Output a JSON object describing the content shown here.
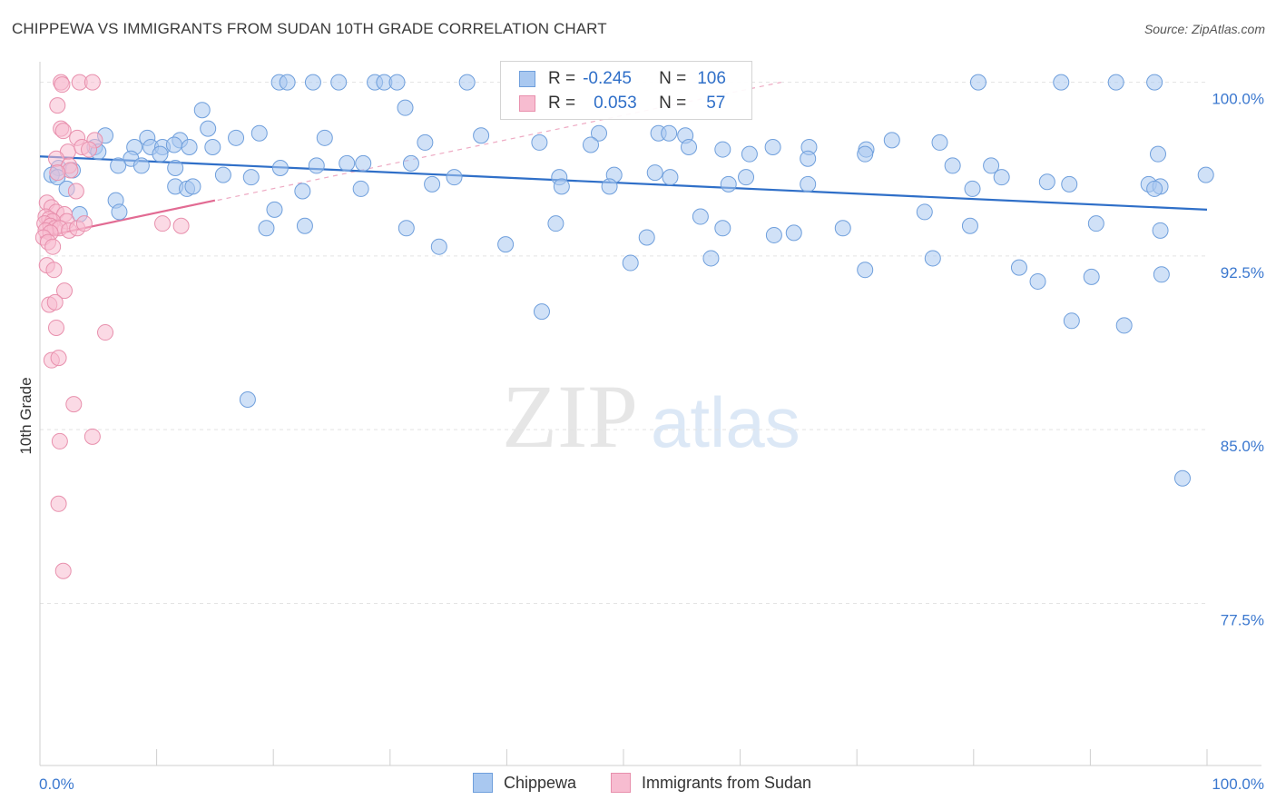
{
  "title": "CHIPPEWA VS IMMIGRANTS FROM SUDAN 10TH GRADE CORRELATION CHART",
  "source": "Source: ZipAtlas.com",
  "watermark": {
    "zip": "ZIP",
    "atlas": "atlas"
  },
  "legend": {
    "rows": [
      {
        "r_label": "R =",
        "r_value": "-0.245",
        "n_label": "N =",
        "n_value": "106",
        "color": "#a9c8f0",
        "border": "#6f9fdc"
      },
      {
        "r_label": "R =",
        "r_value": "0.053",
        "n_label": "N =",
        "n_value": "57",
        "color": "#f7bcd0",
        "border": "#e890ad"
      }
    ]
  },
  "bottom_legend": [
    {
      "label": "Chippewa",
      "color": "#a9c8f0",
      "border": "#6f9fdc"
    },
    {
      "label": "Immigrants from Sudan",
      "color": "#f7bcd0",
      "border": "#e890ad"
    }
  ],
  "chart_data": {
    "type": "scatter",
    "ylabel": "10th Grade",
    "x_tick_labels": [
      "0.0%",
      "100.0%"
    ],
    "y_tick_labels": [
      "100.0%",
      "92.5%",
      "85.0%",
      "77.5%"
    ],
    "y_ticks": [
      100.0,
      92.5,
      85.0,
      77.5
    ],
    "xlim": [
      0,
      100
    ],
    "ylim": [
      70.5,
      101.2
    ],
    "grid": "horizontal-dashed",
    "colors": {
      "blue": "#6f9fdc",
      "blue_fill": "#a9c8f0",
      "blue_line": "#2f6fc8",
      "pink": "#e890ad",
      "pink_fill": "#f7bcd0",
      "pink_line": "#e26b93",
      "axis_text": "#3b78cf"
    },
    "series": [
      {
        "name": "Chippewa",
        "color": "#6f9fdc",
        "trend": {
          "x": [
            0,
            100
          ],
          "y": [
            96.8,
            94.5
          ]
        },
        "points": [
          [
            20.5,
            100
          ],
          [
            21.2,
            100
          ],
          [
            23.4,
            100
          ],
          [
            25.6,
            100
          ],
          [
            28.7,
            100
          ],
          [
            29.5,
            100
          ],
          [
            30.6,
            100
          ],
          [
            36.6,
            100
          ],
          [
            80.4,
            100
          ],
          [
            87.5,
            100
          ],
          [
            92.2,
            100
          ],
          [
            95.5,
            100
          ],
          [
            13.9,
            98.8
          ],
          [
            31.3,
            98.9
          ],
          [
            14.4,
            98.0
          ],
          [
            5.6,
            97.7
          ],
          [
            9.2,
            97.6
          ],
          [
            12.0,
            97.5
          ],
          [
            16.8,
            97.6
          ],
          [
            18.8,
            97.8
          ],
          [
            24.4,
            97.6
          ],
          [
            33.0,
            97.4
          ],
          [
            37.8,
            97.7
          ],
          [
            42.8,
            97.4
          ],
          [
            47.9,
            97.8
          ],
          [
            53.0,
            97.8
          ],
          [
            53.9,
            97.8
          ],
          [
            55.3,
            97.7
          ],
          [
            73.0,
            97.5
          ],
          [
            77.1,
            97.4
          ],
          [
            4.7,
            97.2
          ],
          [
            5.0,
            97.0
          ],
          [
            8.1,
            97.2
          ],
          [
            9.5,
            97.2
          ],
          [
            10.5,
            97.2
          ],
          [
            11.5,
            97.3
          ],
          [
            12.8,
            97.2
          ],
          [
            14.8,
            97.2
          ],
          [
            47.2,
            97.3
          ],
          [
            55.6,
            97.2
          ],
          [
            62.8,
            97.2
          ],
          [
            65.9,
            97.2
          ],
          [
            70.8,
            97.1
          ],
          [
            1.6,
            96.3
          ],
          [
            7.8,
            96.7
          ],
          [
            8.7,
            96.4
          ],
          [
            10.3,
            96.9
          ],
          [
            20.6,
            96.3
          ],
          [
            23.7,
            96.4
          ],
          [
            26.3,
            96.5
          ],
          [
            27.7,
            96.5
          ],
          [
            31.8,
            96.5
          ],
          [
            58.5,
            97.1
          ],
          [
            60.8,
            96.9
          ],
          [
            65.8,
            96.7
          ],
          [
            70.7,
            96.9
          ],
          [
            78.2,
            96.4
          ],
          [
            81.5,
            96.4
          ],
          [
            95.8,
            96.9
          ],
          [
            1.0,
            96.0
          ],
          [
            1.5,
            95.9
          ],
          [
            2.8,
            96.2
          ],
          [
            6.7,
            96.4
          ],
          [
            11.6,
            96.3
          ],
          [
            15.7,
            96.0
          ],
          [
            18.1,
            95.9
          ],
          [
            35.5,
            95.9
          ],
          [
            44.5,
            95.9
          ],
          [
            49.2,
            96.0
          ],
          [
            52.7,
            96.1
          ],
          [
            54.0,
            95.9
          ],
          [
            60.5,
            95.9
          ],
          [
            82.4,
            95.9
          ],
          [
            86.3,
            95.7
          ],
          [
            88.2,
            95.6
          ],
          [
            95.0,
            95.6
          ],
          [
            96.0,
            95.5
          ],
          [
            99.9,
            96.0
          ],
          [
            2.3,
            95.4
          ],
          [
            6.5,
            94.9
          ],
          [
            11.6,
            95.5
          ],
          [
            12.6,
            95.4
          ],
          [
            22.5,
            95.3
          ],
          [
            27.5,
            95.4
          ],
          [
            33.6,
            95.6
          ],
          [
            44.7,
            95.5
          ],
          [
            48.8,
            95.5
          ],
          [
            59.0,
            95.6
          ],
          [
            65.8,
            95.6
          ],
          [
            79.9,
            95.4
          ],
          [
            95.5,
            95.4
          ],
          [
            3.4,
            94.3
          ],
          [
            6.8,
            94.4
          ],
          [
            13.1,
            95.5
          ],
          [
            19.4,
            93.7
          ],
          [
            20.1,
            94.5
          ],
          [
            22.7,
            93.8
          ],
          [
            31.4,
            93.7
          ],
          [
            44.2,
            93.9
          ],
          [
            56.6,
            94.2
          ],
          [
            58.5,
            93.7
          ],
          [
            62.9,
            93.4
          ],
          [
            68.8,
            93.7
          ],
          [
            75.8,
            94.4
          ],
          [
            79.7,
            93.8
          ],
          [
            90.5,
            93.9
          ],
          [
            96.0,
            93.6
          ],
          [
            34.2,
            92.9
          ],
          [
            39.9,
            93.0
          ],
          [
            43.0,
            90.1
          ],
          [
            50.6,
            92.2
          ],
          [
            52.0,
            93.3
          ],
          [
            57.5,
            92.4
          ],
          [
            64.6,
            93.5
          ],
          [
            70.7,
            91.9
          ],
          [
            76.5,
            92.4
          ],
          [
            83.9,
            92.0
          ],
          [
            85.5,
            91.4
          ],
          [
            90.1,
            91.6
          ],
          [
            96.1,
            91.7
          ],
          [
            17.8,
            86.3
          ],
          [
            88.4,
            89.7
          ],
          [
            92.9,
            89.5
          ],
          [
            97.9,
            82.9
          ]
        ]
      },
      {
        "name": "Immigrants from Sudan",
        "color": "#e890ad",
        "trend": {
          "x": [
            0,
            15
          ],
          "y": [
            93.3,
            94.9
          ]
        },
        "trend_ext": {
          "x": [
            0,
            63.5
          ],
          "y": [
            93.3,
            100.0
          ]
        },
        "points": [
          [
            1.8,
            100
          ],
          [
            3.4,
            100
          ],
          [
            4.5,
            100
          ],
          [
            1.9,
            99.9
          ],
          [
            1.5,
            99.0
          ],
          [
            1.8,
            98.0
          ],
          [
            2.0,
            97.9
          ],
          [
            3.2,
            97.6
          ],
          [
            4.7,
            97.5
          ],
          [
            2.4,
            97.0
          ],
          [
            3.6,
            97.2
          ],
          [
            4.2,
            97.1
          ],
          [
            1.4,
            96.7
          ],
          [
            2.5,
            96.4
          ],
          [
            2.6,
            96.2
          ],
          [
            1.5,
            96.1
          ],
          [
            3.1,
            95.3
          ],
          [
            0.6,
            94.8
          ],
          [
            1.0,
            94.6
          ],
          [
            1.4,
            94.4
          ],
          [
            2.1,
            94.3
          ],
          [
            2.3,
            94.0
          ],
          [
            0.5,
            94.2
          ],
          [
            0.8,
            94.1
          ],
          [
            1.1,
            94.0
          ],
          [
            0.4,
            93.9
          ],
          [
            0.9,
            93.8
          ],
          [
            1.3,
            93.7
          ],
          [
            1.7,
            93.7
          ],
          [
            2.5,
            93.6
          ],
          [
            3.2,
            93.7
          ],
          [
            3.8,
            93.9
          ],
          [
            10.5,
            93.9
          ],
          [
            12.1,
            93.8
          ],
          [
            0.5,
            93.6
          ],
          [
            0.9,
            93.5
          ],
          [
            0.3,
            93.3
          ],
          [
            0.7,
            93.1
          ],
          [
            1.1,
            92.9
          ],
          [
            0.6,
            92.1
          ],
          [
            1.2,
            91.9
          ],
          [
            2.1,
            91.0
          ],
          [
            0.8,
            90.4
          ],
          [
            1.3,
            90.5
          ],
          [
            1.4,
            89.4
          ],
          [
            5.6,
            89.2
          ],
          [
            1.0,
            88.0
          ],
          [
            1.6,
            88.1
          ],
          [
            2.9,
            86.1
          ],
          [
            1.7,
            84.5
          ],
          [
            4.5,
            84.7
          ],
          [
            1.6,
            81.8
          ],
          [
            2.0,
            78.9
          ]
        ]
      }
    ]
  }
}
